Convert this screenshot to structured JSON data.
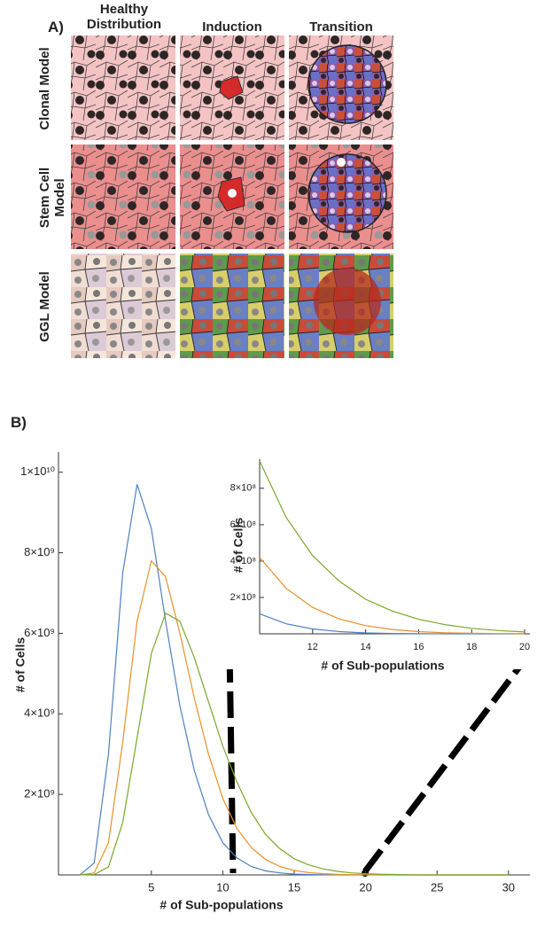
{
  "panel_a": {
    "label": "A)",
    "columns": [
      "Healthy Distribution",
      "Induction",
      "Transition"
    ],
    "rows": [
      "Clonal Model",
      "Stem Cell Model",
      "GGL Model"
    ]
  },
  "panel_b": {
    "label": "B)"
  },
  "chart_data": [
    {
      "type": "line",
      "x_label": "# of Sub-populations",
      "y_label": "# of Cells",
      "x": [
        0,
        1,
        2,
        3,
        4,
        5,
        6,
        7,
        8,
        9,
        10,
        11,
        12,
        13,
        14,
        15,
        16,
        17,
        18,
        19,
        20,
        21,
        22,
        23,
        24,
        25,
        26,
        27,
        28,
        29,
        30
      ],
      "series": [
        {
          "color": "#4f7fc1",
          "values": [
            0,
            300000000.0,
            3000000000.0,
            7500000000.0,
            9700000000.0,
            8600000000.0,
            6300000000.0,
            4200000000.0,
            2600000000.0,
            1500000000.0,
            800000000.0,
            420000000.0,
            210000000.0,
            100000000.0,
            50000000.0,
            20000000.0,
            10000000.0,
            4000000.0,
            2000000.0,
            0,
            0,
            0,
            0,
            0,
            0,
            0,
            0,
            0,
            0,
            0,
            0
          ]
        },
        {
          "color": "#e8902a",
          "values": [
            0,
            50000000.0,
            800000000.0,
            3300000000.0,
            6300000000.0,
            7800000000.0,
            7400000000.0,
            6000000000.0,
            4400000000.0,
            3000000000.0,
            1900000000.0,
            1150000000.0,
            680000000.0,
            380000000.0,
            210000000.0,
            110000000.0,
            60000000.0,
            30000000.0,
            15000000.0,
            7000000.0,
            3000000.0,
            0,
            0,
            0,
            0,
            0,
            0,
            0,
            0,
            0,
            0
          ]
        },
        {
          "color": "#7aa82a",
          "values": [
            0,
            10000000.0,
            200000000.0,
            1300000000.0,
            3400000000.0,
            5500000000.0,
            6500000000.0,
            6300000000.0,
            5400000000.0,
            4300000000.0,
            3200000000.0,
            2300000000.0,
            1550000000.0,
            1000000000.0,
            650000000.0,
            400000000.0,
            250000000.0,
            150000000.0,
            90000000.0,
            50000000.0,
            30000000.0,
            17000000.0,
            10000000.0,
            5000000.0,
            0,
            0,
            0,
            0,
            0,
            0,
            0
          ]
        }
      ],
      "xlim": [
        -1.5,
        31.5
      ],
      "ylim": [
        0,
        10500000000.0
      ],
      "xticks": [
        5,
        10,
        15,
        20,
        25,
        30
      ],
      "yticks": [
        {
          "value": 2000000000.0,
          "label": "2×10⁹"
        },
        {
          "value": 4000000000.0,
          "label": "4×10⁹"
        },
        {
          "value": 6000000000.0,
          "label": "6×10⁹"
        },
        {
          "value": 8000000000.0,
          "label": "8×10⁹"
        },
        {
          "value": 10000000000.0,
          "label": "1×10¹⁰"
        }
      ]
    },
    {
      "type": "line",
      "x_label": "# of Sub-populations",
      "y_label": "# of Cells",
      "x": [
        10,
        11,
        12,
        13,
        14,
        15,
        16,
        17,
        18,
        19,
        20
      ],
      "series": [
        {
          "color": "#4f7fc1",
          "values": [
            110000000.0,
            55000000.0,
            27000000.0,
            12000000.0,
            5000000.0,
            2000000.0,
            1000000.0,
            0,
            0,
            0,
            0
          ]
        },
        {
          "color": "#e8902a",
          "values": [
            420000000.0,
            250000000.0,
            145000000.0,
            82000000.0,
            45000000.0,
            24000000.0,
            12000000.0,
            6000000.0,
            3000000.0,
            1500000.0,
            700000.0
          ]
        },
        {
          "color": "#7aa82a",
          "values": [
            950000000.0,
            640000000.0,
            430000000.0,
            290000000.0,
            190000000.0,
            125000000.0,
            80000000.0,
            50000000.0,
            30000000.0,
            18000000.0,
            10000000.0
          ]
        }
      ],
      "xlim": [
        10,
        20.2
      ],
      "ylim": [
        0,
        960000000.0
      ],
      "xticks": [
        12,
        14,
        16,
        18,
        20
      ],
      "yticks": [
        {
          "value": 200000000.0,
          "label": "2×10⁸"
        },
        {
          "value": 400000000.0,
          "label": "4×10⁸"
        },
        {
          "value": 600000000.0,
          "label": "6×10⁸"
        },
        {
          "value": 800000000.0,
          "label": "8×10⁸"
        }
      ]
    }
  ]
}
